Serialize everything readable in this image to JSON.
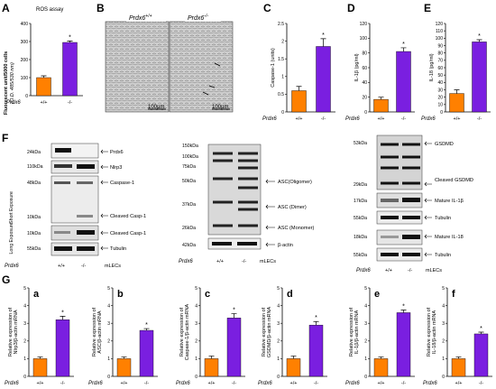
{
  "colors": {
    "wt": "#FF8000",
    "ko": "#7A1FE0"
  },
  "panels": {
    "A": {
      "label": "A",
      "title": "ROS assay",
      "ylabel1": "Fluorescent unit/5000 cells",
      "ylabel2": "(O.D. 485/530 nm)"
    },
    "B": {
      "label": "B",
      "img1_label": "Prdx6",
      "img1_sup": "+/+",
      "img2_label": "Prdx6",
      "img2_sup": "-/-",
      "scale1": "100μm",
      "scale2": "100μm"
    },
    "C": {
      "label": "C",
      "ylabel": "Caspase-1 (units)"
    },
    "D": {
      "label": "D",
      "ylabel": "IL-1β (pg/ml)"
    },
    "E": {
      "label": "E",
      "ylabel": "IL-18 (pg/ml)"
    },
    "F": {
      "label": "F",
      "short_exposure": "Short Exposure",
      "long_exposure": "Long Exposure",
      "mlecs": "mLECs"
    },
    "G": {
      "label": "G",
      "mlecs": "mLECs"
    }
  },
  "genotype": {
    "label": "Prdx6",
    "wt": "+/+",
    "ko": "-/-"
  },
  "significance": "*",
  "chart_data": [
    {
      "id": "A",
      "type": "bar",
      "categories": [
        "+/+",
        "-/-"
      ],
      "values": [
        100,
        295
      ],
      "errors": [
        10,
        8
      ],
      "ylim": [
        0,
        400
      ],
      "yticks": [
        0,
        100,
        200,
        300,
        400
      ],
      "ylabel": "Fluorescent unit/5000 cells (O.D. 485/530 nm)",
      "title": "ROS assay"
    },
    {
      "id": "C",
      "type": "bar",
      "categories": [
        "+/+",
        "-/-"
      ],
      "values": [
        0.6,
        1.85
      ],
      "errors": [
        0.12,
        0.22
      ],
      "ylim": [
        0,
        2.5
      ],
      "yticks": [
        0,
        0.5,
        1,
        1.5,
        2,
        2.5
      ],
      "ylabel": "Caspase-1 (units)"
    },
    {
      "id": "D",
      "type": "bar",
      "categories": [
        "+/+",
        "-/-"
      ],
      "values": [
        17,
        82
      ],
      "errors": [
        3,
        5
      ],
      "ylim": [
        0,
        120
      ],
      "yticks": [
        0,
        20,
        40,
        60,
        80,
        100,
        120
      ],
      "ylabel": "IL-1β (pg/ml)"
    },
    {
      "id": "E",
      "type": "bar",
      "categories": [
        "+/+",
        "-/-"
      ],
      "values": [
        25,
        95
      ],
      "errors": [
        5,
        3
      ],
      "ylim": [
        0,
        120
      ],
      "yticks": [
        0,
        10,
        20,
        30,
        40,
        50,
        60,
        70,
        80,
        90,
        100,
        110,
        120
      ],
      "ylabel": "IL-18 (pg/ml)"
    },
    {
      "id": "Ga",
      "type": "bar",
      "categories": [
        "+/+",
        "-/-"
      ],
      "values": [
        1,
        3.2
      ],
      "errors": [
        0.1,
        0.2
      ],
      "ylim": [
        0,
        5
      ],
      "yticks": [
        0,
        1,
        2,
        3,
        4,
        5
      ],
      "ylabel": "Relative expression of Nlrp3/β-actin mRNA"
    },
    {
      "id": "Gb",
      "type": "bar",
      "categories": [
        "+/+",
        "-/-"
      ],
      "values": [
        1,
        2.6
      ],
      "errors": [
        0.1,
        0.1
      ],
      "ylim": [
        0,
        5
      ],
      "yticks": [
        0,
        1,
        2,
        3,
        4,
        5
      ],
      "ylabel": "Relative expression of ASC/β-actin mRNA"
    },
    {
      "id": "Gc",
      "type": "bar",
      "categories": [
        "+/+",
        "-/-"
      ],
      "values": [
        1,
        3.3
      ],
      "errors": [
        0.15,
        0.25
      ],
      "ylim": [
        0,
        5
      ],
      "yticks": [
        0,
        1,
        2,
        3,
        4,
        5
      ],
      "ylabel": "Relative expression of Caspase-1/β-actin mRNA"
    },
    {
      "id": "Gd",
      "type": "bar",
      "categories": [
        "+/+",
        "-/-"
      ],
      "values": [
        1,
        2.9
      ],
      "errors": [
        0.15,
        0.2
      ],
      "ylim": [
        0,
        5
      ],
      "yticks": [
        0,
        1,
        2,
        3,
        4,
        5
      ],
      "ylabel": "Relative expression of GSDMD/β-actin mRNA"
    },
    {
      "id": "Ge",
      "type": "bar",
      "categories": [
        "+/+",
        "-/-"
      ],
      "values": [
        1,
        3.6
      ],
      "errors": [
        0.1,
        0.15
      ],
      "ylim": [
        0,
        5
      ],
      "yticks": [
        0,
        1,
        2,
        3,
        4,
        5
      ],
      "ylabel": "Relative expression of IL-1β/β-actin mRNA"
    },
    {
      "id": "Gf",
      "type": "bar",
      "categories": [
        "+/+",
        "-/-"
      ],
      "values": [
        1,
        2.4
      ],
      "errors": [
        0.1,
        0.1
      ],
      "ylim": [
        0,
        5
      ],
      "yticks": [
        0,
        1,
        2,
        3,
        4,
        5
      ],
      "ylabel": "Relative expression of IL-18/β-actin mRNA"
    }
  ],
  "blots": {
    "left": {
      "rows": [
        {
          "kda": "24kDa",
          "protein": "Prdx6"
        },
        {
          "kda": "110kDa",
          "protein": "Nlrp3"
        },
        {
          "kda": "48kDa",
          "protein": "Caspase-1"
        },
        {
          "kda": "10kDa",
          "protein": "Cleaved Casp-1"
        },
        {
          "kda": "10kDa",
          "protein": "Cleaved Casp-1"
        },
        {
          "kda": "55kDa",
          "protein": "Tubulin"
        }
      ]
    },
    "middle": {
      "kdas": [
        "150kDa",
        "100kDa",
        "75kDa",
        "50kDa",
        "37kDa",
        "26kDa",
        "42kDa"
      ],
      "proteins": [
        "ASC(Oligomer)",
        "ASC (Dimer)",
        "ASC (Monomer)",
        "β-actin"
      ]
    },
    "right": {
      "kdas": [
        "53kDa",
        "29kDa",
        "17kDa",
        "55kDa",
        "18kDa",
        "55kDa"
      ],
      "proteins": [
        "GSDMD",
        "Cleaved GSDMD",
        "Mature IL-1β",
        "Tubulin",
        "Mature IL-18",
        "Tubulin"
      ]
    }
  }
}
